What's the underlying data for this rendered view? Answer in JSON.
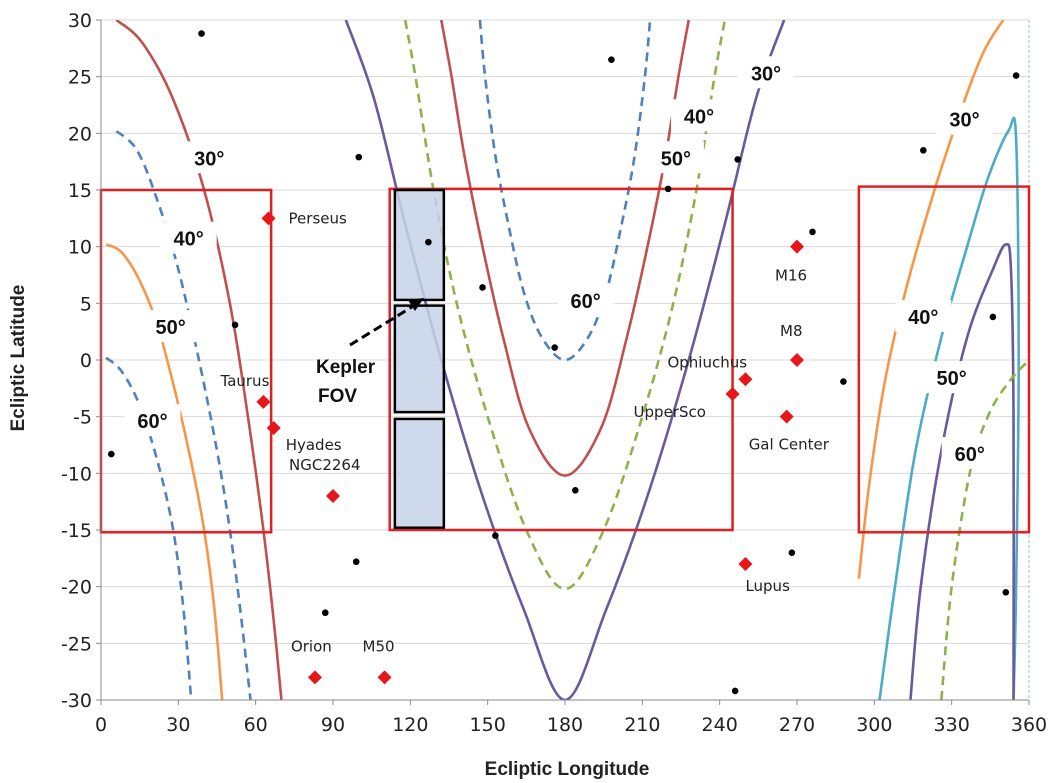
{
  "chart_data": {
    "type": "scatter",
    "title": "",
    "xlabel": "Ecliptic Longitude",
    "ylabel": "Ecliptic Latitude",
    "xlim": [
      0,
      360
    ],
    "ylim": [
      -30,
      30
    ],
    "xticks": [
      "0",
      "30",
      "60",
      "90",
      "120",
      "150",
      "180",
      "210",
      "240",
      "270",
      "300",
      "330",
      "360"
    ],
    "yticks": [
      "30",
      "25",
      "20",
      "15",
      "10",
      "5",
      "0",
      "-5",
      "-10",
      "-15",
      "-20",
      "-25",
      "-30"
    ],
    "grid": "horizontal",
    "colors": {
      "diamond": "#e8151b",
      "dot": "#000000",
      "box": "#e02020",
      "kepler_fill": "#c5d3e8",
      "purple": "#6a5a9c",
      "red": "#c0504d",
      "green": "#8fb04a",
      "blue": "#4f81bd",
      "orange": "#f79646",
      "teal": "#4bacc6"
    },
    "named_objects": [
      {
        "name": "Perseus",
        "x": 65,
        "y": 12.5
      },
      {
        "name": "Taurus",
        "x": 63,
        "y": -3.7
      },
      {
        "name": "Hyades",
        "x": 67,
        "y": -6
      },
      {
        "name": "NGC2264",
        "x": 90,
        "y": -12
      },
      {
        "name": "Orion",
        "x": 83,
        "y": -28
      },
      {
        "name": "M50",
        "x": 110,
        "y": -28
      },
      {
        "name": "M16",
        "x": 270,
        "y": 10
      },
      {
        "name": "M8",
        "x": 270,
        "y": 0
      },
      {
        "name": "Gal Center",
        "x": 266,
        "y": -5
      },
      {
        "name": "Ophiuchus",
        "x": 250,
        "y": -1.7
      },
      {
        "name": "UpperSco",
        "x": 245,
        "y": -3
      },
      {
        "name": "Lupus",
        "x": 250,
        "y": -18
      }
    ],
    "dots": [
      {
        "x": 39,
        "y": 28.8
      },
      {
        "x": 100,
        "y": 17.9
      },
      {
        "x": 198,
        "y": 26.5
      },
      {
        "x": 247,
        "y": 17.7
      },
      {
        "x": 220,
        "y": 15.1
      },
      {
        "x": 127,
        "y": 10.4
      },
      {
        "x": 148,
        "y": 6.4
      },
      {
        "x": 176,
        "y": 1.1
      },
      {
        "x": 52,
        "y": 3.1
      },
      {
        "x": 276,
        "y": 11.3
      },
      {
        "x": 288,
        "y": -1.9
      },
      {
        "x": 319,
        "y": 18.5
      },
      {
        "x": 355,
        "y": 25.1
      },
      {
        "x": 346,
        "y": 3.8
      },
      {
        "x": 184,
        "y": -11.5
      },
      {
        "x": 153,
        "y": -15.5
      },
      {
        "x": 99,
        "y": -17.8
      },
      {
        "x": 87,
        "y": -22.3
      },
      {
        "x": 4,
        "y": -8.3
      },
      {
        "x": 268,
        "y": -17
      },
      {
        "x": 246,
        "y": -29.2
      },
      {
        "x": 351,
        "y": -20.5
      }
    ],
    "regions": [
      {
        "x0": 0,
        "x1": 66,
        "y0": -15.2,
        "y1": 15
      },
      {
        "x0": 112,
        "x1": 245,
        "y0": -15,
        "y1": 15.1
      },
      {
        "x0": 294,
        "x1": 360,
        "y0": -15.2,
        "y1": 15.3
      }
    ],
    "kepler_fov": [
      {
        "x0": 114,
        "x1": 133,
        "y0": 5.3,
        "y1": 15
      },
      {
        "x0": 114,
        "x1": 133,
        "y0": -4.6,
        "y1": 4.8
      },
      {
        "x0": 114,
        "x1": 133,
        "y0": -14.8,
        "y1": -5.2
      }
    ],
    "kepler_label": [
      "Kepler",
      "FOV"
    ],
    "contour_labels": [
      {
        "text": "30°",
        "x": 42,
        "y": 17.8
      },
      {
        "text": "40°",
        "x": 34,
        "y": 10.7
      },
      {
        "text": "50°",
        "x": 27,
        "y": 2.9
      },
      {
        "text": "60°",
        "x": 20,
        "y": -5.4
      },
      {
        "text": "60°",
        "x": 188,
        "y": 5.2
      },
      {
        "text": "50°",
        "x": 223,
        "y": 17.8
      },
      {
        "text": "40°",
        "x": 232,
        "y": 21.5
      },
      {
        "text": "30°",
        "x": 258,
        "y": 25.3
      },
      {
        "text": "30°",
        "x": 335,
        "y": 21.2
      },
      {
        "text": "40°",
        "x": 319,
        "y": 3.8
      },
      {
        "text": "50°",
        "x": 330,
        "y": -1.6
      },
      {
        "text": "60°",
        "x": 337,
        "y": -8.3
      }
    ],
    "series": [
      {
        "color": "purple",
        "dash": false,
        "points": [
          [
            95,
            30
          ],
          [
            106,
            23
          ],
          [
            118,
            12
          ],
          [
            132,
            0
          ],
          [
            148,
            -12
          ],
          [
            164,
            -22
          ],
          [
            180,
            -30
          ],
          [
            196,
            -22
          ],
          [
            212,
            -12
          ],
          [
            228,
            0
          ],
          [
            242,
            12
          ],
          [
            254,
            23
          ],
          [
            265,
            30
          ]
        ]
      },
      {
        "color": "green",
        "dash": true,
        "points": [
          [
            118,
            30
          ],
          [
            122,
            25
          ],
          [
            129,
            15
          ],
          [
            138,
            5
          ],
          [
            150,
            -5
          ],
          [
            165,
            -15
          ],
          [
            180,
            -20.2
          ],
          [
            195,
            -15
          ],
          [
            210,
            -5
          ],
          [
            222,
            5
          ],
          [
            231,
            15
          ],
          [
            238,
            25
          ],
          [
            242,
            30
          ]
        ]
      },
      {
        "color": "red",
        "dash": false,
        "points": [
          [
            132,
            30
          ],
          [
            136,
            25
          ],
          [
            141,
            18
          ],
          [
            148,
            10
          ],
          [
            156,
            2
          ],
          [
            166,
            -6
          ],
          [
            180,
            -10.2
          ],
          [
            194,
            -6
          ],
          [
            204,
            2
          ],
          [
            212,
            10
          ],
          [
            219,
            18
          ],
          [
            224,
            25
          ],
          [
            228,
            30
          ]
        ]
      },
      {
        "color": "blue",
        "dash": true,
        "points": [
          [
            147,
            30
          ],
          [
            149,
            25
          ],
          [
            153,
            18
          ],
          [
            158,
            12
          ],
          [
            164,
            6
          ],
          [
            171,
            2
          ],
          [
            180,
            0
          ],
          [
            189,
            2
          ],
          [
            196,
            6
          ],
          [
            202,
            12
          ],
          [
            207,
            18
          ],
          [
            211,
            25
          ],
          [
            213,
            30
          ]
        ]
      },
      {
        "color": "red",
        "dash": false,
        "points": [
          [
            6,
            30
          ],
          [
            16,
            28
          ],
          [
            28,
            23
          ],
          [
            40,
            15
          ],
          [
            50,
            5
          ],
          [
            57,
            -5
          ],
          [
            63,
            -15
          ],
          [
            67,
            -23
          ],
          [
            70,
            -30
          ]
        ]
      },
      {
        "color": "blue",
        "dash": true,
        "points": [
          [
            6,
            20.2
          ],
          [
            14,
            18.5
          ],
          [
            22,
            14
          ],
          [
            30,
            8
          ],
          [
            38,
            0
          ],
          [
            45,
            -8
          ],
          [
            50,
            -15
          ],
          [
            54,
            -22
          ],
          [
            58,
            -30
          ]
        ]
      },
      {
        "color": "orange",
        "dash": false,
        "points": [
          [
            2,
            10.2
          ],
          [
            8,
            9.5
          ],
          [
            15,
            7
          ],
          [
            22,
            3
          ],
          [
            29,
            -3
          ],
          [
            35,
            -9
          ],
          [
            40,
            -15
          ],
          [
            44,
            -22
          ],
          [
            47,
            -30
          ]
        ]
      },
      {
        "color": "blue",
        "dash": true,
        "points": [
          [
            2,
            0.2
          ],
          [
            8,
            -1
          ],
          [
            15,
            -4
          ],
          [
            22,
            -9
          ],
          [
            28,
            -15
          ],
          [
            32,
            -22
          ],
          [
            35,
            -30
          ]
        ]
      },
      {
        "color": "orange",
        "dash": false,
        "points": [
          [
            294,
            -19.3
          ],
          [
            298,
            -11
          ],
          [
            304,
            -2
          ],
          [
            312,
            6
          ],
          [
            322,
            14
          ],
          [
            332,
            21
          ],
          [
            342,
            27
          ],
          [
            350,
            30
          ]
        ]
      },
      {
        "color": "teal",
        "dash": false,
        "points": [
          [
            302,
            -30
          ],
          [
            308,
            -20
          ],
          [
            316,
            -8
          ],
          [
            326,
            2
          ],
          [
            336,
            10
          ],
          [
            344,
            16
          ],
          [
            352,
            20.2
          ],
          [
            355,
            19.5
          ],
          [
            356,
            0
          ],
          [
            355,
            -20
          ],
          [
            354,
            -30
          ]
        ]
      },
      {
        "color": "purple",
        "dash": false,
        "points": [
          [
            314,
            -30
          ],
          [
            318,
            -20
          ],
          [
            326,
            -8
          ],
          [
            336,
            2
          ],
          [
            346,
            8
          ],
          [
            351,
            10.2
          ],
          [
            353,
            8
          ],
          [
            354,
            -5
          ],
          [
            354,
            -30
          ]
        ]
      },
      {
        "color": "green",
        "dash": true,
        "points": [
          [
            326,
            -30
          ],
          [
            330,
            -20
          ],
          [
            337,
            -10
          ],
          [
            344,
            -5
          ],
          [
            352,
            -2
          ],
          [
            360,
            0
          ]
        ]
      }
    ]
  }
}
